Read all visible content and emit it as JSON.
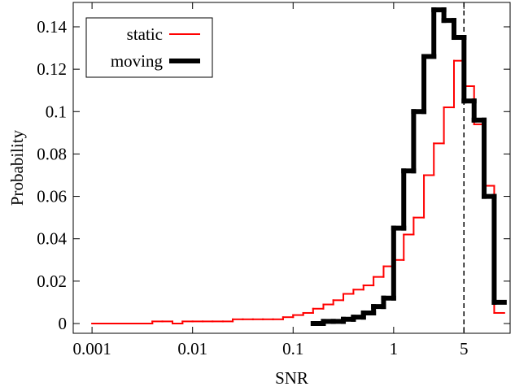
{
  "chart_data": {
    "type": "step-histogram",
    "xlabel": "SNR",
    "ylabel": "Probability",
    "log_x": true,
    "xlim": [
      0.00065,
      14.4
    ],
    "ylim": [
      -0.0046,
      0.1515
    ],
    "xticks": [
      0.001,
      0.01,
      0.1,
      1,
      5
    ],
    "yticks": [
      0,
      0.02,
      0.04,
      0.06,
      0.08,
      0.1,
      0.12,
      0.14
    ],
    "vline": 5,
    "legend": "upper left",
    "bins": [
      0.001,
      0.00126,
      0.00158,
      0.002,
      0.00251,
      0.00316,
      0.00398,
      0.00501,
      0.00631,
      0.00794,
      0.01,
      0.0126,
      0.0158,
      0.02,
      0.0251,
      0.0316,
      0.0398,
      0.0501,
      0.0631,
      0.0794,
      0.1,
      0.126,
      0.158,
      0.2,
      0.251,
      0.316,
      0.398,
      0.501,
      0.631,
      0.794,
      1,
      1.26,
      1.58,
      2,
      2.51,
      3.16,
      3.98,
      5.01,
      6.31,
      7.94,
      10,
      12.6
    ],
    "series": [
      {
        "name": "static",
        "color": "#ff0000",
        "values": [
          0,
          0,
          0,
          0,
          0,
          0,
          0.001,
          0.001,
          0,
          0.001,
          0.001,
          0.001,
          0.001,
          0.001,
          0.002,
          0.002,
          0.002,
          0.002,
          0.002,
          0.003,
          0.004,
          0.005,
          0.007,
          0.009,
          0.011,
          0.014,
          0.016,
          0.018,
          0.022,
          0.027,
          0.03,
          0.042,
          0.05,
          0.07,
          0.085,
          0.102,
          0.124,
          0.112,
          0.094,
          0.065,
          0.005
        ]
      },
      {
        "name": "moving",
        "color": "#000000",
        "values": [
          null,
          null,
          null,
          null,
          null,
          null,
          null,
          null,
          null,
          null,
          null,
          null,
          null,
          null,
          null,
          null,
          null,
          null,
          null,
          null,
          null,
          null,
          0,
          0.001,
          0.001,
          0.002,
          0.003,
          0.005,
          0.008,
          0.012,
          0.045,
          0.072,
          0.1,
          0.126,
          0.148,
          0.143,
          0.135,
          0.105,
          0.096,
          0.06,
          0.01
        ]
      }
    ]
  }
}
